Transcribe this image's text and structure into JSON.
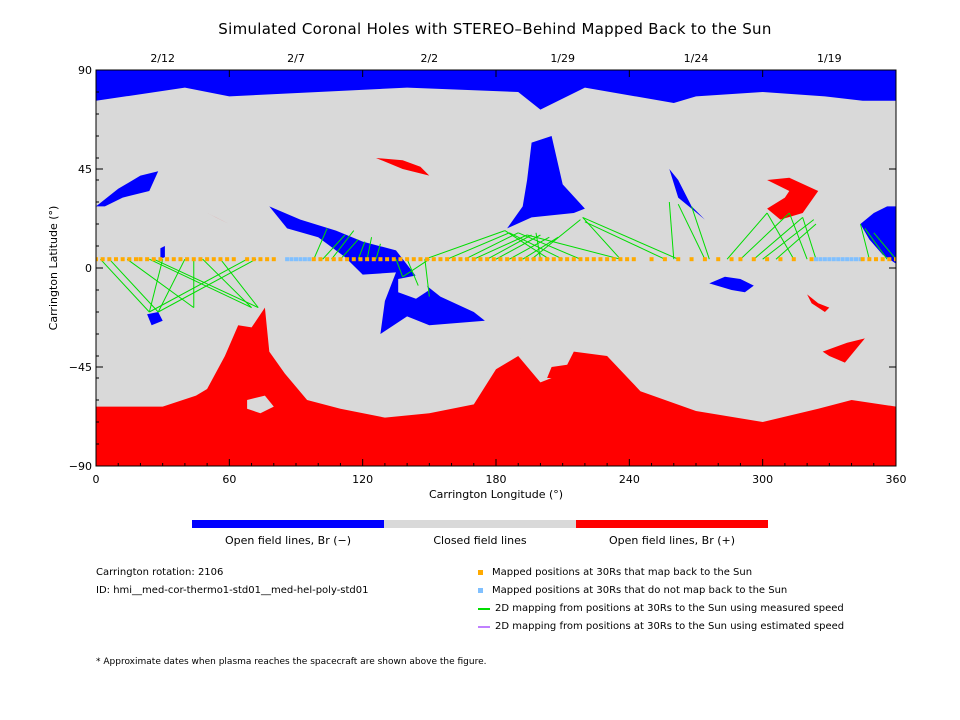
{
  "title": "Simulated Coronal Holes with STEREO–Behind Mapped Back to the Sun",
  "colors": {
    "open_negative": "#0000ff",
    "closed": "#d9d9d9",
    "open_positive": "#ff0000",
    "mapped_back": "#ffaa00",
    "not_mapped_back": "#80c0ff",
    "measured_speed_line": "#00dd00",
    "estimated_speed_line": "#c080ff"
  },
  "chart_data": {
    "type": "heatmap",
    "title": "Simulated Coronal Holes with STEREO–Behind Mapped Back to the Sun",
    "xlabel": "Carrington Longitude (°)",
    "ylabel": "Carrington Latitude (°)",
    "xlim": [
      0,
      360
    ],
    "ylim": [
      -90,
      90
    ],
    "x_ticks": [
      "0",
      "60",
      "120",
      "180",
      "240",
      "300",
      "360"
    ],
    "y_ticks": [
      "−90",
      "−45",
      "0",
      "45",
      "90"
    ],
    "date_ticks": [
      {
        "label": "2/12",
        "lon": 30
      },
      {
        "label": "2/7",
        "lon": 90
      },
      {
        "label": "2/2",
        "lon": 150
      },
      {
        "label": "1/29",
        "lon": 210
      },
      {
        "label": "1/24",
        "lon": 270
      },
      {
        "label": "1/19",
        "lon": 330
      }
    ],
    "regions": [
      {
        "polarity": "negative",
        "points": [
          [
            0,
            90
          ],
          [
            360,
            90
          ],
          [
            360,
            76
          ],
          [
            345,
            76
          ],
          [
            328,
            78
          ],
          [
            300,
            80
          ],
          [
            270,
            78
          ],
          [
            260,
            75
          ],
          [
            220,
            82
          ],
          [
            200,
            72
          ],
          [
            190,
            80
          ],
          [
            140,
            82
          ],
          [
            100,
            80
          ],
          [
            60,
            78
          ],
          [
            40,
            82
          ],
          [
            0,
            76
          ]
        ]
      },
      {
        "polarity": "positive",
        "points": [
          [
            0,
            -90
          ],
          [
            360,
            -90
          ],
          [
            360,
            -63
          ],
          [
            340,
            -60
          ],
          [
            325,
            -64
          ],
          [
            300,
            -70
          ],
          [
            270,
            -65
          ],
          [
            245,
            -56
          ],
          [
            230,
            -40
          ],
          [
            215,
            -38
          ],
          [
            210,
            -48
          ],
          [
            200,
            -52
          ],
          [
            190,
            -40
          ],
          [
            180,
            -46
          ],
          [
            170,
            -62
          ],
          [
            150,
            -66
          ],
          [
            130,
            -68
          ],
          [
            110,
            -64
          ],
          [
            95,
            -60
          ],
          [
            85,
            -48
          ],
          [
            78,
            -38
          ],
          [
            76,
            -18
          ],
          [
            70,
            -27
          ],
          [
            64,
            -26
          ],
          [
            58,
            -40
          ],
          [
            50,
            -55
          ],
          [
            45,
            -58
          ],
          [
            30,
            -63
          ],
          [
            0,
            -63
          ]
        ]
      },
      {
        "polarity": "negative",
        "points": [
          [
            78,
            28
          ],
          [
            92,
            22
          ],
          [
            108,
            17
          ],
          [
            120,
            12
          ],
          [
            135,
            8
          ],
          [
            145,
            -5
          ],
          [
            155,
            -13
          ],
          [
            170,
            -20
          ],
          [
            175,
            -24
          ],
          [
            150,
            -26
          ],
          [
            140,
            -22
          ],
          [
            128,
            -30
          ],
          [
            130,
            -15
          ],
          [
            135,
            -2
          ],
          [
            120,
            -3
          ],
          [
            112,
            5
          ],
          [
            100,
            14
          ],
          [
            86,
            18
          ]
        ]
      },
      {
        "polarity": "negative",
        "points": [
          [
            185,
            18
          ],
          [
            196,
            23
          ],
          [
            215,
            25
          ],
          [
            220,
            27
          ],
          [
            210,
            38
          ],
          [
            205,
            60
          ],
          [
            196,
            57
          ],
          [
            194,
            40
          ],
          [
            192,
            28
          ]
        ]
      },
      {
        "polarity": "negative",
        "points": [
          [
            0,
            28
          ],
          [
            10,
            36
          ],
          [
            20,
            42
          ],
          [
            28,
            44
          ],
          [
            24,
            35
          ],
          [
            12,
            32
          ],
          [
            4,
            28
          ]
        ]
      },
      {
        "polarity": "negative",
        "points": [
          [
            258,
            45
          ],
          [
            262,
            40
          ],
          [
            268,
            28
          ],
          [
            274,
            22
          ],
          [
            268,
            27
          ],
          [
            262,
            32
          ]
        ]
      },
      {
        "polarity": "negative",
        "points": [
          [
            344,
            20
          ],
          [
            350,
            25
          ],
          [
            356,
            28
          ],
          [
            360,
            28
          ],
          [
            360,
            2
          ],
          [
            354,
            6
          ],
          [
            348,
            13
          ]
        ]
      },
      {
        "polarity": "negative",
        "points": [
          [
            276,
            -7
          ],
          [
            286,
            -10
          ],
          [
            292,
            -11
          ],
          [
            296,
            -8
          ],
          [
            290,
            -5
          ],
          [
            283,
            -4
          ]
        ]
      },
      {
        "polarity": "negative",
        "points": [
          [
            23,
            -21
          ],
          [
            28,
            -20
          ],
          [
            30,
            -24
          ],
          [
            25,
            -26
          ]
        ]
      },
      {
        "polarity": "negative",
        "points": [
          [
            29,
            9
          ],
          [
            31,
            10
          ],
          [
            31,
            5
          ],
          [
            29,
            4
          ]
        ]
      },
      {
        "polarity": "positive",
        "points": [
          [
            126,
            50
          ],
          [
            138,
            45
          ],
          [
            150,
            42
          ],
          [
            146,
            46
          ],
          [
            138,
            49
          ]
        ]
      },
      {
        "polarity": "positive",
        "points": [
          [
            302,
            40
          ],
          [
            312,
            41
          ],
          [
            325,
            35
          ],
          [
            318,
            25
          ],
          [
            308,
            22
          ],
          [
            302,
            27
          ],
          [
            310,
            32
          ],
          [
            312,
            35
          ]
        ]
      },
      {
        "polarity": "positive",
        "points": [
          [
            50,
            25
          ],
          [
            54,
            23
          ],
          [
            60,
            20
          ],
          [
            56,
            22
          ]
        ]
      },
      {
        "polarity": "positive",
        "points": [
          [
            320,
            -12
          ],
          [
            325,
            -16
          ],
          [
            330,
            -18
          ],
          [
            328,
            -20
          ],
          [
            322,
            -16
          ]
        ]
      },
      {
        "polarity": "positive",
        "points": [
          [
            327,
            -38
          ],
          [
            338,
            -34
          ],
          [
            346,
            -32
          ],
          [
            337,
            -43
          ],
          [
            330,
            -40
          ]
        ]
      },
      {
        "polarity": "positive",
        "points": [
          [
            205,
            -45
          ],
          [
            212,
            -44
          ],
          [
            217,
            -48
          ],
          [
            210,
            -50
          ],
          [
            203,
            -50
          ]
        ]
      },
      {
        "polarity": "closed",
        "points": [
          [
            68,
            -60
          ],
          [
            76,
            -58
          ],
          [
            80,
            -63
          ],
          [
            74,
            -66
          ],
          [
            68,
            -64
          ]
        ]
      },
      {
        "polarity": "closed",
        "points": [
          [
            187,
            -34
          ],
          [
            191,
            -32
          ],
          [
            194,
            -37
          ],
          [
            190,
            -40
          ],
          [
            186,
            -38
          ]
        ]
      },
      {
        "polarity": "closed",
        "points": [
          [
            136,
            -5
          ],
          [
            146,
            -3
          ],
          [
            150,
            -10
          ],
          [
            144,
            -14
          ],
          [
            136,
            -11
          ]
        ]
      },
      {
        "polarity": "closed",
        "points": [
          [
            206,
            18
          ],
          [
            212,
            21
          ],
          [
            218,
            18
          ],
          [
            214,
            13
          ],
          [
            208,
            14
          ]
        ]
      },
      {
        "polarity": "closed",
        "points": [
          [
            334,
            26
          ],
          [
            344,
            31
          ],
          [
            352,
            29
          ],
          [
            346,
            22
          ]
        ]
      }
    ],
    "footpoint_groups": [
      {
        "spacecraft_lon": [
          2,
          6,
          14,
          24,
          26,
          30,
          40,
          44,
          48,
          56,
          68,
          72
        ],
        "sun_points": [
          [
            24,
            -20
          ],
          [
            28,
            -20
          ],
          [
            44,
            -18
          ],
          [
            70,
            -18
          ],
          [
            73,
            -18
          ]
        ]
      },
      {
        "spacecraft_lon": [
          98,
          102,
          106,
          110,
          118,
          122,
          126
        ],
        "sun_points": [
          [
            104,
            18
          ],
          [
            112,
            15
          ],
          [
            116,
            17
          ],
          [
            118,
            13
          ],
          [
            121,
            12
          ],
          [
            124,
            14
          ],
          [
            128,
            11
          ]
        ]
      },
      {
        "spacecraft_lon": [
          135,
          140,
          148,
          150
        ],
        "sun_points": [
          [
            138,
            -4
          ],
          [
            145,
            -8
          ],
          [
            150,
            -13
          ]
        ]
      },
      {
        "spacecraft_lon": [
          148,
          158,
          166,
          170,
          176,
          180,
          186,
          192,
          196,
          200,
          204,
          210,
          218,
          236
        ],
        "sun_points": [
          [
            184,
            17
          ],
          [
            186,
            16
          ],
          [
            190,
            16
          ],
          [
            194,
            15
          ],
          [
            196,
            15
          ],
          [
            200,
            15
          ],
          [
            204,
            14
          ],
          [
            208,
            14
          ],
          [
            218,
            22
          ],
          [
            198,
            16
          ]
        ]
      },
      {
        "spacecraft_lon": [
          236,
          256,
          262
        ],
        "sun_points": [
          [
            219,
            23
          ],
          [
            220,
            21
          ]
        ]
      },
      {
        "spacecraft_lon": [
          260,
          274,
          276
        ],
        "sun_points": [
          [
            258,
            30
          ],
          [
            262,
            29
          ],
          [
            268,
            28
          ]
        ]
      },
      {
        "spacecraft_lon": [
          284,
          290,
          296,
          300,
          306,
          314,
          320,
          324
        ],
        "sun_points": [
          [
            302,
            25
          ],
          [
            312,
            25
          ],
          [
            318,
            23
          ],
          [
            323,
            22
          ],
          [
            324,
            20
          ]
        ]
      },
      {
        "spacecraft_lon": [
          348,
          356,
          360
        ],
        "sun_points": [
          [
            344,
            20
          ],
          [
            346,
            18
          ],
          [
            350,
            16
          ],
          [
            352,
            14
          ]
        ]
      }
    ],
    "mapped_positions_lat": 4,
    "mapped_positions_lon": [
      0,
      3,
      6,
      9,
      12,
      15,
      18,
      20,
      23,
      26,
      29,
      32,
      35,
      38,
      41,
      44,
      47,
      50,
      53,
      56,
      59,
      62,
      68,
      71,
      74,
      77,
      80,
      98,
      101,
      104,
      107,
      110,
      113,
      116,
      119,
      122,
      125,
      128,
      131,
      134,
      137,
      140,
      143,
      146,
      149,
      152,
      155,
      158,
      161,
      164,
      167,
      170,
      173,
      176,
      179,
      182,
      185,
      188,
      191,
      194,
      197,
      200,
      203,
      206,
      209,
      212,
      215,
      218,
      221,
      224,
      227,
      230,
      233,
      236,
      239,
      242,
      250,
      256,
      262,
      268,
      274,
      280,
      286,
      290,
      296,
      302,
      308,
      314,
      322,
      345,
      348,
      351,
      354,
      357,
      360
    ],
    "unmapped_positions_lon": [
      86,
      88,
      90,
      92,
      94,
      96,
      324,
      326,
      328,
      330,
      332,
      334,
      336,
      338,
      340,
      342,
      344
    ]
  },
  "legend": {
    "open_negative": "Open field lines, Br (−)",
    "closed": "Closed field lines",
    "open_positive": "Open field lines, Br (+)"
  },
  "info": {
    "rotation": "Carrington rotation: 2106",
    "id": "ID: hmi__med-cor-thermo1-std01__med-hel-poly-std01"
  },
  "key": {
    "mapped": "Mapped positions at 30Rs that map back to the Sun",
    "not_mapped": "Mapped positions at 30Rs that do not map back to the Sun",
    "measured": "2D mapping from positions at 30Rs to the Sun using measured speed",
    "estimated": "2D mapping from positions at 30Rs to the Sun using estimated speed"
  },
  "footnote": "* Approximate dates when plasma reaches the spacecraft are shown above the figure."
}
